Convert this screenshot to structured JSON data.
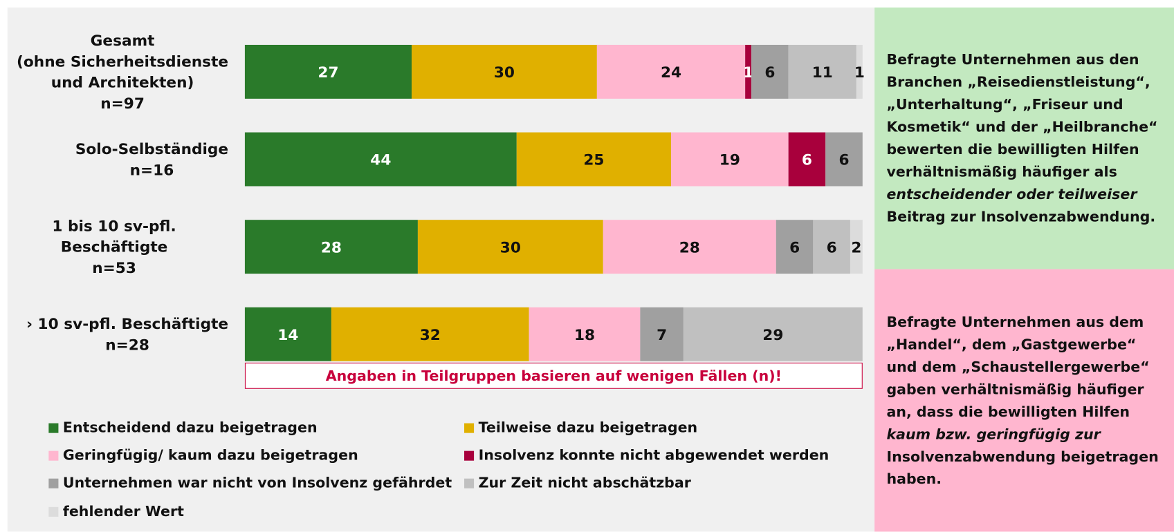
{
  "chart_data": {
    "type": "stacked-bar-horizontal",
    "categories": [
      "Gesamt\n(ohne Sicherheitsdienste\nund Architekten)\nn=97",
      "Solo-Selbständige\nn=16",
      "1 bis 10 sv-pfl. Beschäftigte\nn=53",
      "› 10 sv-pfl. Beschäftigte\nn=28"
    ],
    "xlim": [
      0,
      100
    ],
    "series": [
      {
        "name": "Entscheidend dazu beigetragen",
        "color": "#2a7a2a",
        "values": [
          27,
          44,
          28,
          14
        ]
      },
      {
        "name": "Teilweise dazu beigetragen",
        "color": "#e0b000",
        "values": [
          30,
          25,
          30,
          32
        ]
      },
      {
        "name": "Geringfügig/ kaum dazu beigetragen",
        "color": "#ffb6cf",
        "values": [
          24,
          19,
          28,
          18
        ]
      },
      {
        "name": "Insolvenz konnte nicht abgewendet werden",
        "color": "#a8003c",
        "values": [
          1,
          6,
          null,
          null
        ]
      },
      {
        "name": "Unternehmen war nicht von Insolvenz gefährdet",
        "color": "#a0a0a0",
        "values": [
          6,
          6,
          6,
          7
        ]
      },
      {
        "name": "Zur Zeit nicht abschätzbar",
        "color": "#c0c0c0",
        "values": [
          11,
          null,
          6,
          29
        ]
      },
      {
        "name": "fehlender Wert",
        "color": "#dcdcdc",
        "values": [
          1,
          null,
          2,
          null
        ]
      }
    ],
    "note": "Angaben in Teilgruppen basieren auf wenigen Fällen (n)!"
  },
  "panels": [
    [
      "Befragte Unternehmen aus den Branchen „Reisedienstleistung“, „Unterhaltung“, „Friseur und Kosmetik“ und der „Heilbranche“ bewerten die bewilligten Hilfen verhältnismäßig häufiger als ",
      "entscheidender oder teilweiser",
      " Beitrag zur Insolvenzabwendung."
    ],
    [
      "Befragte Unternehmen aus dem „Handel“, dem „Gastgewerbe“ und dem „Schaustellergewerbe“ gaben verhältnismäßig häufiger an, dass die bewilligten Hilfen ",
      "kaum bzw. geringfügig zur",
      " Insolvenzabwendung beigetragen haben."
    ]
  ]
}
